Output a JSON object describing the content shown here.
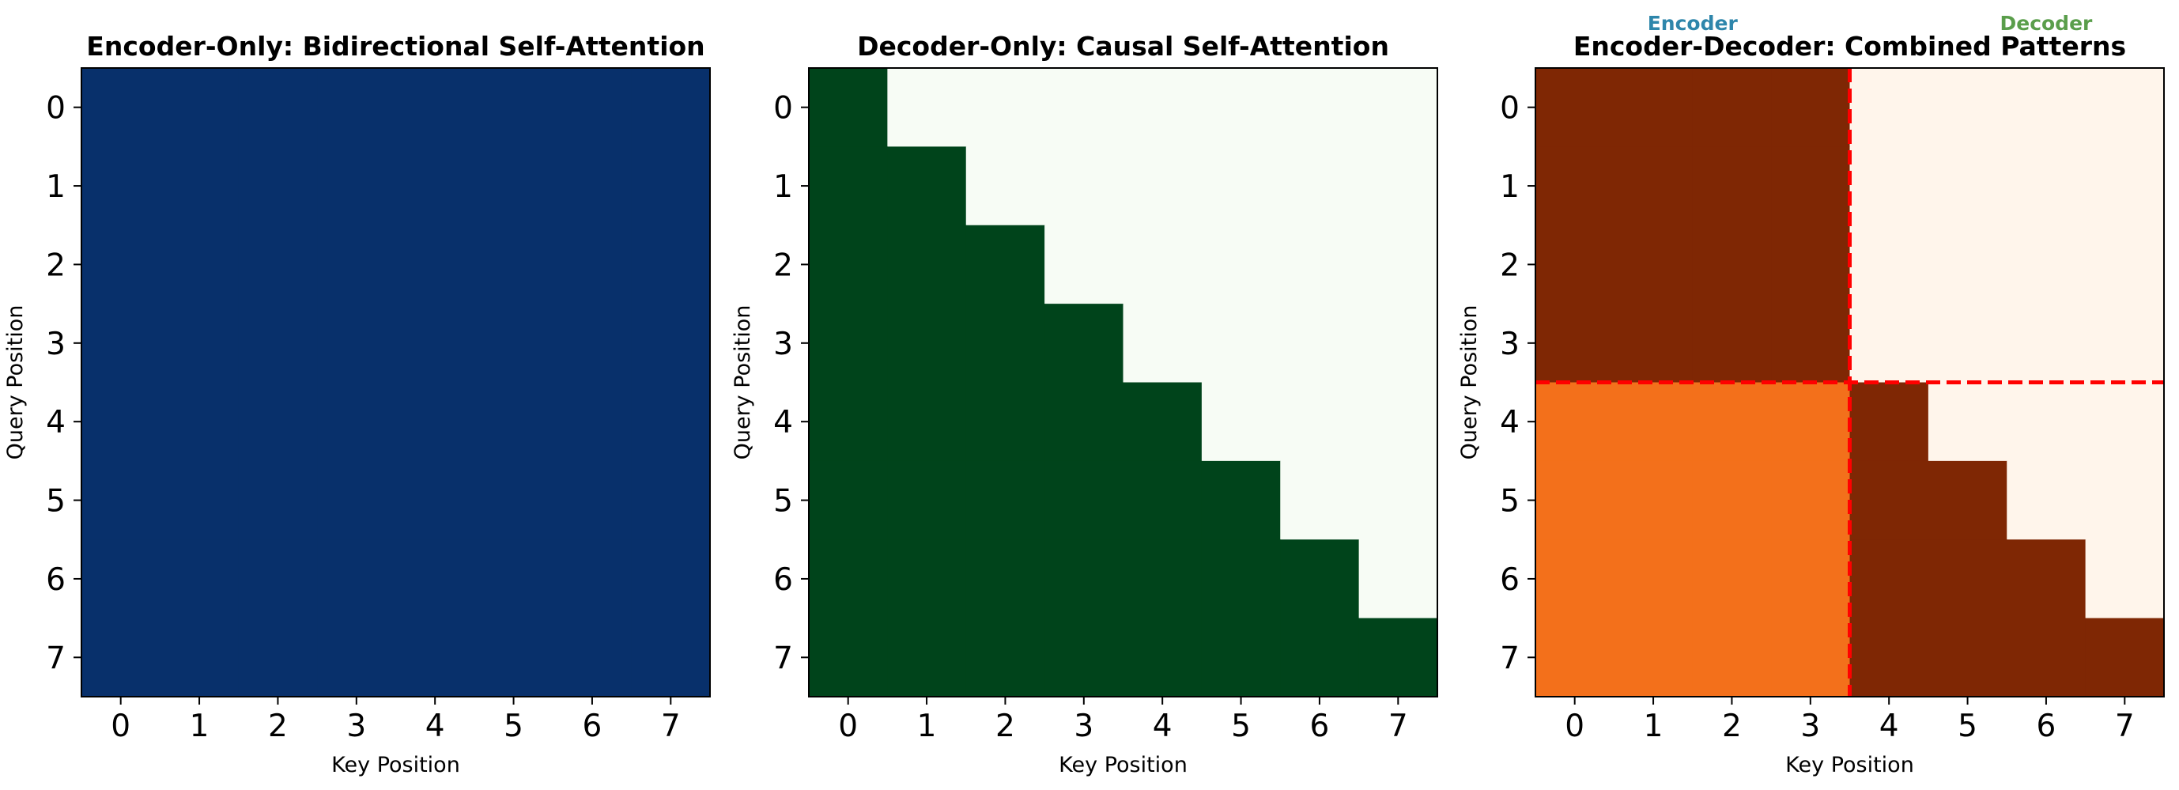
{
  "chart_data": [
    {
      "type": "heatmap",
      "title": "Encoder-Only: Bidirectional Self-Attention",
      "xlabel": "Key Position",
      "ylabel": "Query Position",
      "x_ticks": [
        "0",
        "1",
        "2",
        "3",
        "4",
        "5",
        "6",
        "7"
      ],
      "y_ticks": [
        "0",
        "1",
        "2",
        "3",
        "4",
        "5",
        "6",
        "7"
      ],
      "colors": {
        "low": "#f7fbff",
        "high": "#08306b"
      },
      "matrix": [
        [
          1,
          1,
          1,
          1,
          1,
          1,
          1,
          1
        ],
        [
          1,
          1,
          1,
          1,
          1,
          1,
          1,
          1
        ],
        [
          1,
          1,
          1,
          1,
          1,
          1,
          1,
          1
        ],
        [
          1,
          1,
          1,
          1,
          1,
          1,
          1,
          1
        ],
        [
          1,
          1,
          1,
          1,
          1,
          1,
          1,
          1
        ],
        [
          1,
          1,
          1,
          1,
          1,
          1,
          1,
          1
        ],
        [
          1,
          1,
          1,
          1,
          1,
          1,
          1,
          1
        ],
        [
          1,
          1,
          1,
          1,
          1,
          1,
          1,
          1
        ]
      ]
    },
    {
      "type": "heatmap",
      "title": "Decoder-Only: Causal Self-Attention",
      "xlabel": "Key Position",
      "ylabel": "Query Position",
      "x_ticks": [
        "0",
        "1",
        "2",
        "3",
        "4",
        "5",
        "6",
        "7"
      ],
      "y_ticks": [
        "0",
        "1",
        "2",
        "3",
        "4",
        "5",
        "6",
        "7"
      ],
      "colors": {
        "low": "#f7fcf5",
        "high": "#00441b"
      },
      "matrix": [
        [
          1,
          0,
          0,
          0,
          0,
          0,
          0,
          0
        ],
        [
          1,
          1,
          0,
          0,
          0,
          0,
          0,
          0
        ],
        [
          1,
          1,
          1,
          0,
          0,
          0,
          0,
          0
        ],
        [
          1,
          1,
          1,
          1,
          0,
          0,
          0,
          0
        ],
        [
          1,
          1,
          1,
          1,
          1,
          0,
          0,
          0
        ],
        [
          1,
          1,
          1,
          1,
          1,
          1,
          0,
          0
        ],
        [
          1,
          1,
          1,
          1,
          1,
          1,
          1,
          0
        ],
        [
          1,
          1,
          1,
          1,
          1,
          1,
          1,
          1
        ]
      ]
    },
    {
      "type": "heatmap",
      "title": "Encoder-Decoder: Combined Patterns",
      "xlabel": "Key Position",
      "ylabel": "Query Position",
      "x_ticks": [
        "0",
        "1",
        "2",
        "3",
        "4",
        "5",
        "6",
        "7"
      ],
      "y_ticks": [
        "0",
        "1",
        "2",
        "3",
        "4",
        "5",
        "6",
        "7"
      ],
      "colors": {
        "low": "#fff5eb",
        "mid": "#f3701b",
        "high": "#7f2704"
      },
      "matrix": [
        [
          1,
          1,
          1,
          1,
          0,
          0,
          0,
          0
        ],
        [
          1,
          1,
          1,
          1,
          0,
          0,
          0,
          0
        ],
        [
          1,
          1,
          1,
          1,
          0,
          0,
          0,
          0
        ],
        [
          1,
          1,
          1,
          1,
          0,
          0,
          0,
          0
        ],
        [
          0.5,
          0.5,
          0.5,
          0.5,
          1,
          0,
          0,
          0
        ],
        [
          0.5,
          0.5,
          0.5,
          0.5,
          1,
          1,
          0,
          0
        ],
        [
          0.5,
          0.5,
          0.5,
          0.5,
          1,
          1,
          1,
          0
        ],
        [
          0.5,
          0.5,
          0.5,
          0.5,
          1,
          1,
          1,
          1
        ]
      ],
      "divider_at": 3.5,
      "divider_color": "#ff0000",
      "region_labels": [
        {
          "text": "Encoder",
          "color": "#2e86ab",
          "x": 1.5
        },
        {
          "text": "Decoder",
          "color": "#5a9e4b",
          "x": 6
        }
      ]
    }
  ]
}
